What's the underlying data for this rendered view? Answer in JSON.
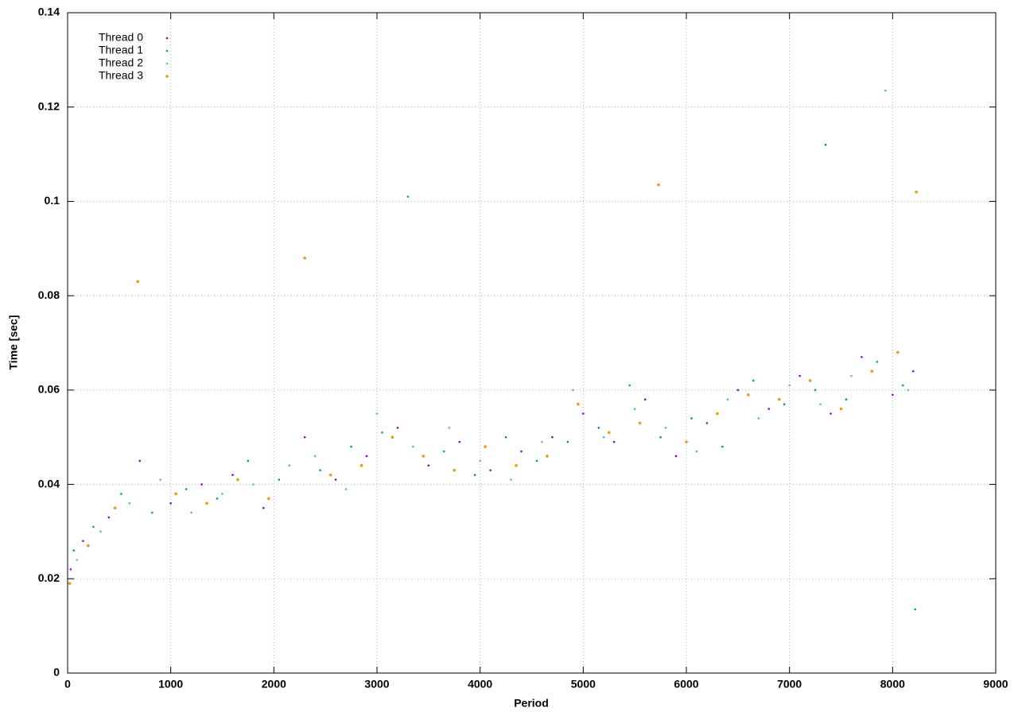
{
  "chart_data": {
    "type": "scatter",
    "x_label": "Period",
    "y_label": "Time [sec]",
    "xlim": [
      0,
      9000
    ],
    "xticks": [
      0,
      1000,
      2000,
      3000,
      4000,
      5000,
      6000,
      7000,
      8000,
      9000
    ],
    "ylim": [
      0,
      0.14
    ],
    "yticks": [
      0,
      0.02,
      0.04,
      0.06,
      0.08,
      0.1,
      0.12,
      0.14
    ],
    "grid": true,
    "legend": "top-left",
    "series": [
      {
        "name": "Thread 0",
        "color": "#9400d3",
        "x": [
          30,
          150,
          400,
          700,
          1000,
          1300,
          1600,
          1900,
          2300,
          2600,
          2900,
          3200,
          3500,
          3800,
          4100,
          4400,
          4700,
          5000,
          5300,
          5600,
          5900,
          6200,
          6500,
          6800,
          7100,
          7400,
          7700,
          8000,
          8200
        ],
        "values": [
          0.022,
          0.028,
          0.033,
          0.045,
          0.036,
          0.04,
          0.042,
          0.035,
          0.05,
          0.041,
          0.046,
          0.052,
          0.044,
          0.049,
          0.043,
          0.047,
          0.05,
          0.055,
          0.049,
          0.058,
          0.046,
          0.053,
          0.06,
          0.056,
          0.063,
          0.055,
          0.067,
          0.059,
          0.064
        ]
      },
      {
        "name": "Thread 1",
        "color": "#009e73",
        "x": [
          60,
          250,
          520,
          820,
          1150,
          1450,
          1750,
          2050,
          2450,
          2750,
          3050,
          3300,
          3650,
          3950,
          4250,
          4550,
          4850,
          5150,
          5450,
          5750,
          6050,
          6350,
          6650,
          6950,
          7250,
          7350,
          7550,
          7850,
          8100,
          8220
        ],
        "values": [
          0.026,
          0.031,
          0.038,
          0.034,
          0.039,
          0.037,
          0.045,
          0.041,
          0.043,
          0.048,
          0.051,
          0.101,
          0.047,
          0.042,
          0.05,
          0.045,
          0.049,
          0.052,
          0.061,
          0.05,
          0.054,
          0.048,
          0.062,
          0.057,
          0.06,
          0.112,
          0.058,
          0.066,
          0.061,
          0.0135
        ]
      },
      {
        "name": "Thread 2",
        "color": "#56b4e9",
        "x": [
          90,
          320,
          600,
          900,
          1200,
          1500,
          1800,
          2150,
          2400,
          2700,
          3000,
          3350,
          3700,
          4000,
          4300,
          4600,
          4900,
          5200,
          5500,
          5800,
          6100,
          6400,
          6700,
          7000,
          7300,
          7600,
          7930,
          8150
        ],
        "values": [
          0.024,
          0.03,
          0.036,
          0.041,
          0.034,
          0.038,
          0.04,
          0.044,
          0.046,
          0.039,
          0.055,
          0.048,
          0.052,
          0.045,
          0.041,
          0.049,
          0.06,
          0.05,
          0.056,
          0.052,
          0.047,
          0.058,
          0.054,
          0.061,
          0.057,
          0.063,
          0.1235,
          0.06
        ]
      },
      {
        "name": "Thread 3",
        "color": "#e69f00",
        "x": [
          20,
          200,
          460,
          680,
          1050,
          1350,
          1650,
          1950,
          2300,
          2550,
          2850,
          3150,
          3450,
          3750,
          4050,
          4350,
          4650,
          4950,
          5250,
          5550,
          5730,
          6000,
          6300,
          6600,
          6900,
          7200,
          7500,
          7800,
          8050,
          8230
        ],
        "values": [
          0.019,
          0.027,
          0.035,
          0.083,
          0.038,
          0.036,
          0.041,
          0.037,
          0.088,
          0.042,
          0.044,
          0.05,
          0.046,
          0.043,
          0.048,
          0.044,
          0.046,
          0.057,
          0.051,
          0.053,
          0.1035,
          0.049,
          0.055,
          0.059,
          0.058,
          0.062,
          0.056,
          0.064,
          0.068,
          0.102
        ]
      }
    ]
  }
}
